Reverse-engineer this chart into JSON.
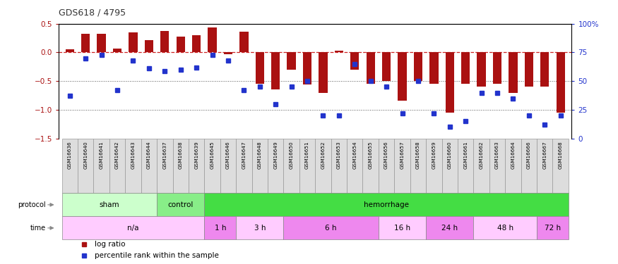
{
  "title": "GDS618 / 4795",
  "samples": [
    "GSM16636",
    "GSM16640",
    "GSM16641",
    "GSM16642",
    "GSM16643",
    "GSM16644",
    "GSM16637",
    "GSM16638",
    "GSM16639",
    "GSM16645",
    "GSM16646",
    "GSM16647",
    "GSM16648",
    "GSM16649",
    "GSM16650",
    "GSM16651",
    "GSM16652",
    "GSM16653",
    "GSM16654",
    "GSM16655",
    "GSM16656",
    "GSM16657",
    "GSM16658",
    "GSM16659",
    "GSM16660",
    "GSM16661",
    "GSM16662",
    "GSM16663",
    "GSM16664",
    "GSM16666",
    "GSM16667",
    "GSM16668"
  ],
  "log_ratio": [
    0.05,
    0.33,
    0.33,
    0.07,
    0.35,
    0.22,
    0.38,
    0.27,
    0.3,
    0.43,
    -0.03,
    0.36,
    -0.55,
    -0.65,
    -0.3,
    -0.56,
    -0.7,
    0.03,
    -0.3,
    -0.55,
    -0.5,
    -0.84,
    -0.5,
    -0.55,
    -1.05,
    -0.55,
    -0.6,
    -0.55,
    -0.7,
    -0.6,
    -0.6,
    -1.05
  ],
  "percentile": [
    37,
    70,
    73,
    42,
    68,
    61,
    59,
    60,
    62,
    73,
    68,
    42,
    45,
    30,
    45,
    50,
    20,
    20,
    65,
    50,
    45,
    22,
    50,
    22,
    10,
    15,
    40,
    40,
    35,
    20,
    12,
    20
  ],
  "bar_color": "#aa1111",
  "dot_color": "#2233cc",
  "dashed_color": "#cc2222",
  "dotted_color": "#555555",
  "ylim_left": [
    -1.5,
    0.5
  ],
  "ylim_right": [
    0,
    100
  ],
  "yticks_left": [
    -1.5,
    -1.0,
    -0.5,
    0.0,
    0.5
  ],
  "yticks_right": [
    0,
    25,
    50,
    75,
    100
  ],
  "protocol_groups": [
    {
      "label": "sham",
      "start": 0,
      "end": 6,
      "color": "#ccffcc"
    },
    {
      "label": "control",
      "start": 6,
      "end": 9,
      "color": "#88ee88"
    },
    {
      "label": "hemorrhage",
      "start": 9,
      "end": 32,
      "color": "#44dd44"
    }
  ],
  "time_groups": [
    {
      "label": "n/a",
      "start": 0,
      "end": 9,
      "color": "#ffccff"
    },
    {
      "label": "1 h",
      "start": 9,
      "end": 11,
      "color": "#ee88ee"
    },
    {
      "label": "3 h",
      "start": 11,
      "end": 14,
      "color": "#ffccff"
    },
    {
      "label": "6 h",
      "start": 14,
      "end": 20,
      "color": "#ee88ee"
    },
    {
      "label": "16 h",
      "start": 20,
      "end": 23,
      "color": "#ffccff"
    },
    {
      "label": "24 h",
      "start": 23,
      "end": 26,
      "color": "#ee88ee"
    },
    {
      "label": "48 h",
      "start": 26,
      "end": 30,
      "color": "#ffccff"
    },
    {
      "label": "72 h",
      "start": 30,
      "end": 32,
      "color": "#ee88ee"
    }
  ],
  "legend_items": [
    {
      "label": "log ratio",
      "color": "#aa1111"
    },
    {
      "label": "percentile rank within the sample",
      "color": "#2233cc"
    }
  ],
  "bar_width": 0.55,
  "dot_size": 4.5,
  "sample_bg": "#dddddd",
  "sample_border": "#999999",
  "arrow_color": "#888888"
}
